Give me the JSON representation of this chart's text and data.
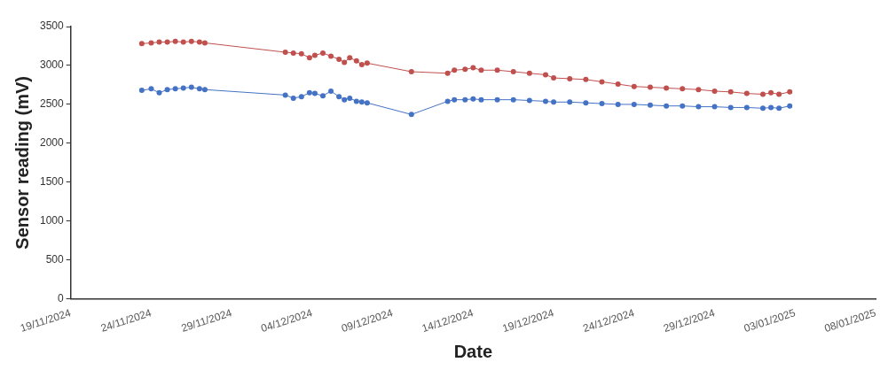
{
  "chart_data": {
    "type": "line",
    "xlabel": "Date",
    "ylabel": "Sensor reading (mV)",
    "x": [
      "2024-11-23T10:00",
      "2024-11-24T00:00",
      "2024-11-24T12:00",
      "2024-11-25T00:00",
      "2024-11-25T12:00",
      "2024-11-26T00:00",
      "2024-11-26T12:00",
      "2024-11-27T00:00",
      "2024-11-27T08:00",
      "2024-12-02T08:00",
      "2024-12-02T20:00",
      "2024-12-03T08:00",
      "2024-12-03T20:00",
      "2024-12-04T04:00",
      "2024-12-04T16:00",
      "2024-12-05T04:00",
      "2024-12-05T16:00",
      "2024-12-06T00:00",
      "2024-12-06T08:00",
      "2024-12-06T18:00",
      "2024-12-07T02:00",
      "2024-12-07T10:00",
      "2024-12-10T04:00",
      "2024-12-12T10:00",
      "2024-12-12T20:00",
      "2024-12-13T12:00",
      "2024-12-14T00:00",
      "2024-12-14T12:00",
      "2024-12-15T12:00",
      "2024-12-16T12:00",
      "2024-12-17T12:00",
      "2024-12-18T12:00",
      "2024-12-19T00:00",
      "2024-12-20T00:00",
      "2024-12-21T00:00",
      "2024-12-22T00:00",
      "2024-12-23T00:00",
      "2024-12-24T00:00",
      "2024-12-25T00:00",
      "2024-12-26T00:00",
      "2024-12-27T00:00",
      "2024-12-28T00:00",
      "2024-12-29T00:00",
      "2024-12-30T00:00",
      "2024-12-31T00:00",
      "2025-01-01T00:00",
      "2025-01-01T12:00",
      "2025-01-02T00:00",
      "2025-01-02T16:00"
    ],
    "series": [
      {
        "color": "#4472c4",
        "values": [
          2680,
          2700,
          2650,
          2690,
          2700,
          2710,
          2720,
          2700,
          2690,
          2620,
          2580,
          2600,
          2650,
          2640,
          2610,
          2670,
          2600,
          2560,
          2580,
          2540,
          2530,
          2520,
          2370,
          2540,
          2560,
          2560,
          2570,
          2560,
          2560,
          2560,
          2550,
          2540,
          2530,
          2530,
          2520,
          2510,
          2500,
          2500,
          2490,
          2480,
          2480,
          2470,
          2470,
          2460,
          2460,
          2450,
          2460,
          2450,
          2480
        ]
      },
      {
        "color": "#c0504d",
        "values": [
          3280,
          3290,
          3300,
          3300,
          3310,
          3300,
          3310,
          3300,
          3290,
          3170,
          3160,
          3150,
          3100,
          3130,
          3160,
          3120,
          3080,
          3040,
          3100,
          3060,
          3010,
          3030,
          2920,
          2900,
          2940,
          2950,
          2970,
          2940,
          2940,
          2920,
          2900,
          2880,
          2840,
          2830,
          2820,
          2790,
          2760,
          2730,
          2720,
          2710,
          2700,
          2690,
          2670,
          2660,
          2640,
          2630,
          2650,
          2630,
          2660
        ]
      }
    ],
    "xlim": [
      "2024-11-19",
      "2025-01-08"
    ],
    "xticks": [
      {
        "value": "2024-11-19",
        "label": "19/11/2024"
      },
      {
        "value": "2024-11-24",
        "label": "24/11/2024"
      },
      {
        "value": "2024-11-29",
        "label": "29/11/2024"
      },
      {
        "value": "2024-12-04",
        "label": "04/12/2024"
      },
      {
        "value": "2024-12-09",
        "label": "09/12/2024"
      },
      {
        "value": "2024-12-14",
        "label": "14/12/2024"
      },
      {
        "value": "2024-12-19",
        "label": "19/12/2024"
      },
      {
        "value": "2024-12-24",
        "label": "24/12/2024"
      },
      {
        "value": "2024-12-29",
        "label": "29/12/2024"
      },
      {
        "value": "2025-01-03",
        "label": "03/01/2025"
      },
      {
        "value": "2025-01-08",
        "label": "08/01/2025"
      }
    ],
    "ylim": [
      0,
      3500
    ],
    "yticks": [
      0,
      500,
      1000,
      1500,
      2000,
      2500,
      3000,
      3500
    ],
    "grid": false,
    "legend": false,
    "marker": "circle",
    "line_style": "solid"
  }
}
